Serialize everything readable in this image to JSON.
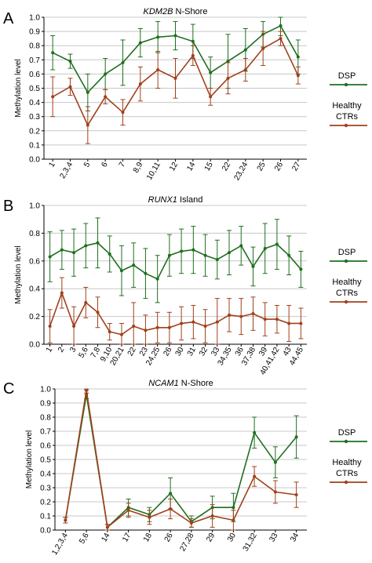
{
  "colors": {
    "dsp": "#1f6f1f",
    "healthy": "#a0401b",
    "grid": "#c8c8c8",
    "axis": "#000000"
  },
  "chart_data": [
    {
      "type": "line",
      "panel_letter": "A",
      "title_gene": "KDM2B",
      "title_rest": " N-Shore",
      "ylabel": "Methylation level",
      "ylim": [
        0,
        1
      ],
      "yticks": [
        "0.0",
        "0.1",
        "0.2",
        "0.3",
        "0.4",
        "0.5",
        "0.6",
        "0.7",
        "0.8",
        "0.9",
        "1.0"
      ],
      "grid": true,
      "legend_position": "right",
      "categories": [
        "1",
        "2,3,4",
        "5",
        "6",
        "7",
        "8,9",
        "10,11",
        "12",
        "14",
        "15",
        "22",
        "23,24",
        "25",
        "26",
        "27"
      ],
      "series": [
        {
          "name": "DSP",
          "values": [
            0.75,
            0.69,
            0.47,
            0.6,
            0.68,
            0.82,
            0.86,
            0.87,
            0.83,
            0.61,
            0.69,
            0.77,
            0.88,
            0.94,
            0.72
          ],
          "err": [
            0.12,
            0.05,
            0.13,
            0.11,
            0.16,
            0.1,
            0.11,
            0.1,
            0.12,
            0.11,
            0.19,
            0.15,
            0.09,
            0.07,
            0.12
          ]
        },
        {
          "name": "Healthy CTRs",
          "values": [
            0.44,
            0.51,
            0.24,
            0.44,
            0.33,
            0.53,
            0.63,
            0.57,
            0.73,
            0.44,
            0.57,
            0.63,
            0.78,
            0.85,
            0.59
          ],
          "err": [
            0.14,
            0.06,
            0.13,
            0.05,
            0.09,
            0.12,
            0.13,
            0.14,
            0.07,
            0.06,
            0.11,
            0.08,
            0.12,
            0.05,
            0.06
          ]
        }
      ]
    },
    {
      "type": "line",
      "panel_letter": "B",
      "title_gene": "RUNX1",
      "title_rest": " Island",
      "ylabel": "Methylation level",
      "ylim": [
        0,
        1
      ],
      "yticks": [
        "0.0",
        "0.2",
        "0.4",
        "0.6",
        "0.8",
        "1.0"
      ],
      "grid": true,
      "legend_position": "right",
      "categories": [
        "1",
        "2",
        "3",
        "5,6",
        "7,8",
        "9,10",
        "20,21",
        "22",
        "23",
        "24,25",
        "26",
        "30",
        "31",
        "32",
        "33",
        "34,35",
        "36",
        "37,38",
        "39",
        "40,41,42",
        "43",
        "44,45"
      ],
      "series": [
        {
          "name": "DSP",
          "values": [
            0.63,
            0.68,
            0.66,
            0.71,
            0.73,
            0.65,
            0.53,
            0.57,
            0.51,
            0.47,
            0.64,
            0.67,
            0.68,
            0.64,
            0.61,
            0.66,
            0.71,
            0.56,
            0.69,
            0.72,
            0.64,
            0.54
          ],
          "err": [
            0.18,
            0.14,
            0.17,
            0.16,
            0.18,
            0.13,
            0.18,
            0.16,
            0.18,
            0.17,
            0.15,
            0.16,
            0.17,
            0.15,
            0.14,
            0.16,
            0.14,
            0.14,
            0.18,
            0.18,
            0.14,
            0.13
          ]
        },
        {
          "name": "Healthy CTRs",
          "values": [
            0.13,
            0.37,
            0.13,
            0.3,
            0.23,
            0.09,
            0.07,
            0.13,
            0.1,
            0.12,
            0.12,
            0.15,
            0.16,
            0.13,
            0.16,
            0.21,
            0.2,
            0.22,
            0.18,
            0.18,
            0.15,
            0.15
          ],
          "err": [
            0.12,
            0.11,
            0.14,
            0.11,
            0.11,
            0.06,
            0.08,
            0.17,
            0.11,
            0.11,
            0.11,
            0.12,
            0.12,
            0.12,
            0.17,
            0.12,
            0.13,
            0.12,
            0.12,
            0.1,
            0.13,
            0.11
          ]
        }
      ]
    },
    {
      "type": "line",
      "panel_letter": "C",
      "title_gene": "NCAM1",
      "title_rest": " N-Shore",
      "ylabel": "Methylation level",
      "ylim": [
        0,
        1
      ],
      "yticks": [
        "0.0",
        "0.1",
        "0.2",
        "0.3",
        "0.4",
        "0.5",
        "0.6",
        "0.7",
        "0.8",
        "0.9",
        "1.0"
      ],
      "grid": true,
      "legend_position": "right",
      "categories": [
        "1,2,3,4",
        "5,6",
        "14",
        "17",
        "18",
        "26",
        "27,28",
        "29",
        "30",
        "31,32",
        "33",
        "34"
      ],
      "series": [
        {
          "name": "DSP",
          "values": [
            0.07,
            0.96,
            0.02,
            0.16,
            0.11,
            0.26,
            0.06,
            0.16,
            0.16,
            0.69,
            0.48,
            0.66
          ],
          "err": [
            0.02,
            0.03,
            0.02,
            0.06,
            0.05,
            0.11,
            0.04,
            0.08,
            0.1,
            0.11,
            0.11,
            0.15
          ]
        },
        {
          "name": "Healthy CTRs",
          "values": [
            0.07,
            0.99,
            0.02,
            0.14,
            0.09,
            0.15,
            0.05,
            0.1,
            0.07,
            0.38,
            0.27,
            0.25
          ],
          "err": [
            0.02,
            0.02,
            0.02,
            0.05,
            0.05,
            0.07,
            0.03,
            0.08,
            0.07,
            0.07,
            0.08,
            0.09
          ]
        }
      ]
    }
  ]
}
